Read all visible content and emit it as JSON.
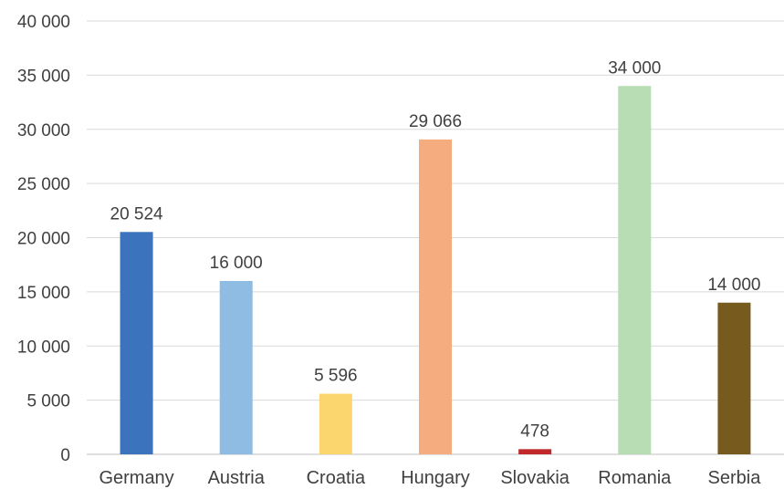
{
  "chart_data": {
    "type": "bar",
    "title": "",
    "xlabel": "",
    "ylabel": "",
    "categories": [
      "Germany",
      "Austria",
      "Croatia",
      "Hungary",
      "Slovakia",
      "Romania",
      "Serbia"
    ],
    "values": [
      20524,
      16000,
      5596,
      29066,
      478,
      34000,
      14000
    ],
    "value_labels": [
      "20 524",
      "16 000",
      "5 596",
      "29 066",
      "478",
      "34 000",
      "14 000"
    ],
    "colors": [
      "#3B73BC",
      "#8EBCE2",
      "#FBD66E",
      "#F5AD7F",
      "#C0282B",
      "#B8DDB4",
      "#775A1E"
    ],
    "ylim": [
      0,
      40000
    ],
    "yticks": [
      0,
      5000,
      10000,
      15000,
      20000,
      25000,
      30000,
      35000,
      40000
    ],
    "ytick_labels": [
      "0",
      "5 000",
      "10 000",
      "15 000",
      "20 000",
      "25 000",
      "30 000",
      "35 000",
      "40 000"
    ],
    "grid": true,
    "legend": "none"
  }
}
